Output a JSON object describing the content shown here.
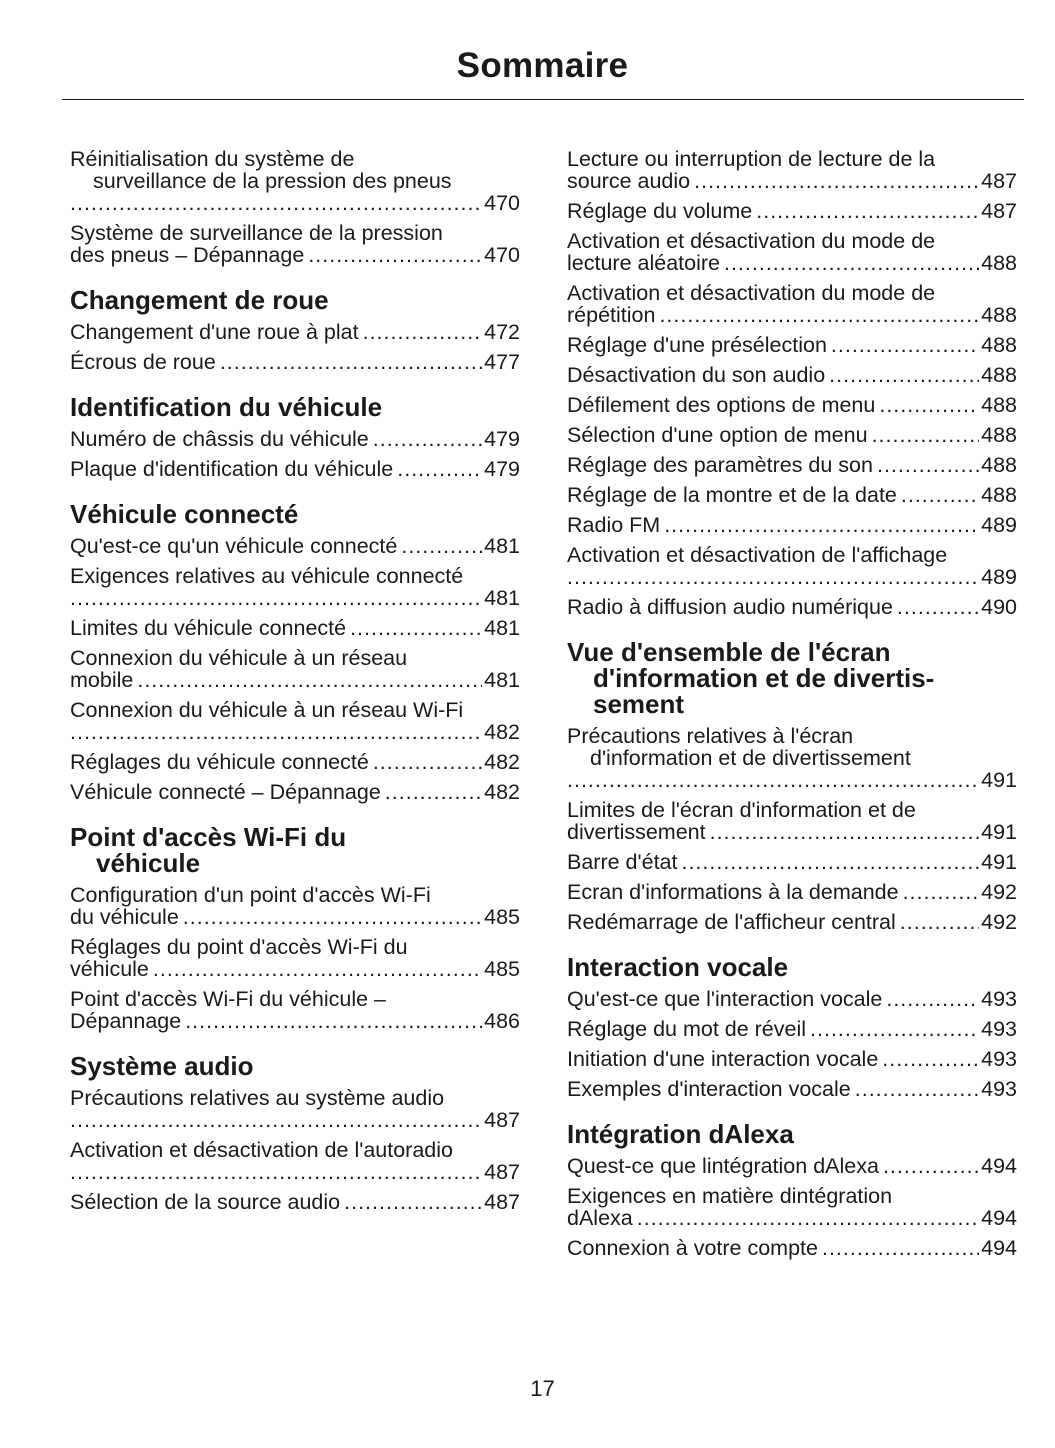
{
  "page_title": "Sommaire",
  "page_number": "17",
  "columns": [
    {
      "sections": [
        {
          "heading": [],
          "entries": [
            {
              "lines": [
                "Réinitialisation du système de",
                "surveillance de la pression des pneus",
                ""
              ],
              "page": "470"
            },
            {
              "lines": [
                "Système de surveillance de la pression",
                "des pneus – Dépannage"
              ],
              "page": "470"
            }
          ]
        },
        {
          "heading": [
            "Changement de roue"
          ],
          "entries": [
            {
              "lines": [
                "Changement d'une roue à plat"
              ],
              "page": "472"
            },
            {
              "lines": [
                "Écrous de roue"
              ],
              "page": "477"
            }
          ]
        },
        {
          "heading": [
            "Identification du véhicule"
          ],
          "entries": [
            {
              "lines": [
                "Numéro de châssis du véhicule"
              ],
              "page": "479"
            },
            {
              "lines": [
                "Plaque d'identification du véhicule"
              ],
              "page": "479"
            }
          ]
        },
        {
          "heading": [
            "Véhicule connecté"
          ],
          "entries": [
            {
              "lines": [
                "Qu'est-ce qu'un véhicule connecté"
              ],
              "page": "481"
            },
            {
              "lines": [
                "Exigences relatives au véhicule connecté",
                ""
              ],
              "page": "481"
            },
            {
              "lines": [
                "Limites du véhicule connecté"
              ],
              "page": "481"
            },
            {
              "lines": [
                "Connexion du véhicule à un réseau",
                "mobile"
              ],
              "page": "481"
            },
            {
              "lines": [
                "Connexion du véhicule à un réseau Wi-Fi",
                ""
              ],
              "page": "482"
            },
            {
              "lines": [
                "Réglages du véhicule connecté"
              ],
              "page": "482"
            },
            {
              "lines": [
                "Véhicule connecté – Dépannage"
              ],
              "page": "482"
            }
          ]
        },
        {
          "heading": [
            "Point d'accès Wi-Fi du",
            "véhicule"
          ],
          "entries": [
            {
              "lines": [
                "Configuration d'un point d'accès Wi-Fi",
                "du véhicule"
              ],
              "page": "485"
            },
            {
              "lines": [
                "Réglages du point d'accès Wi-Fi du",
                "véhicule"
              ],
              "page": "485"
            },
            {
              "lines": [
                "Point d'accès Wi-Fi du véhicule –",
                "Dépannage"
              ],
              "page": "486"
            }
          ]
        },
        {
          "heading": [
            "Système audio"
          ],
          "entries": [
            {
              "lines": [
                "Précautions relatives au système audio",
                ""
              ],
              "page": "487"
            },
            {
              "lines": [
                "Activation et désactivation de l'autoradio",
                ""
              ],
              "page": "487"
            },
            {
              "lines": [
                "Sélection de la source audio"
              ],
              "page": "487"
            }
          ]
        }
      ]
    },
    {
      "sections": [
        {
          "heading": [],
          "entries": [
            {
              "lines": [
                "Lecture ou interruption de lecture de la",
                "source audio"
              ],
              "page": "487"
            },
            {
              "lines": [
                "Réglage du volume"
              ],
              "page": "487"
            },
            {
              "lines": [
                "Activation et désactivation du mode de",
                "lecture aléatoire"
              ],
              "page": "488"
            },
            {
              "lines": [
                "Activation et désactivation du mode de",
                "répétition"
              ],
              "page": "488"
            },
            {
              "lines": [
                "Réglage d'une présélection"
              ],
              "page": "488"
            },
            {
              "lines": [
                "Désactivation du son audio"
              ],
              "page": "488"
            },
            {
              "lines": [
                "Défilement des options de menu"
              ],
              "page": "488"
            },
            {
              "lines": [
                "Sélection d'une option de menu"
              ],
              "page": "488"
            },
            {
              "lines": [
                "Réglage des paramètres du son"
              ],
              "page": "488"
            },
            {
              "lines": [
                "Réglage de la montre et de la date"
              ],
              "page": "488"
            },
            {
              "lines": [
                "Radio FM"
              ],
              "page": "489"
            },
            {
              "lines": [
                "Activation et désactivation de l'affichage",
                ""
              ],
              "page": "489"
            },
            {
              "lines": [
                "Radio à diffusion audio numérique"
              ],
              "page": "490"
            }
          ]
        },
        {
          "heading": [
            "Vue d'ensemble de l'écran",
            "d'information et de divertis-",
            "sement"
          ],
          "entries": [
            {
              "lines": [
                "Précautions relatives à l'écran",
                "d'information et de divertissement",
                ""
              ],
              "page": "491"
            },
            {
              "lines": [
                "Limites de l'écran d'information et de",
                "divertissement"
              ],
              "page": "491"
            },
            {
              "lines": [
                "Barre d'état"
              ],
              "page": "491"
            },
            {
              "lines": [
                "Ecran d'informations à la demande"
              ],
              "page": "492"
            },
            {
              "lines": [
                "Redémarrage de l'afficheur central"
              ],
              "page": "492"
            }
          ]
        },
        {
          "heading": [
            "Interaction vocale"
          ],
          "entries": [
            {
              "lines": [
                "Qu'est-ce que l'interaction vocale"
              ],
              "page": "493"
            },
            {
              "lines": [
                "Réglage du mot de réveil"
              ],
              "page": "493"
            },
            {
              "lines": [
                "Initiation d'une interaction vocale"
              ],
              "page": "493"
            },
            {
              "lines": [
                "Exemples d'interaction vocale"
              ],
              "page": "493"
            }
          ]
        },
        {
          "heading": [
            "Intégration dAlexa"
          ],
          "entries": [
            {
              "lines": [
                "Quest-ce que lintégration dAlexa"
              ],
              "page": "494"
            },
            {
              "lines": [
                "Exigences en matière dintégration",
                "dAlexa"
              ],
              "page": "494"
            },
            {
              "lines": [
                "Connexion à votre compte"
              ],
              "page": "494"
            }
          ]
        }
      ]
    }
  ]
}
